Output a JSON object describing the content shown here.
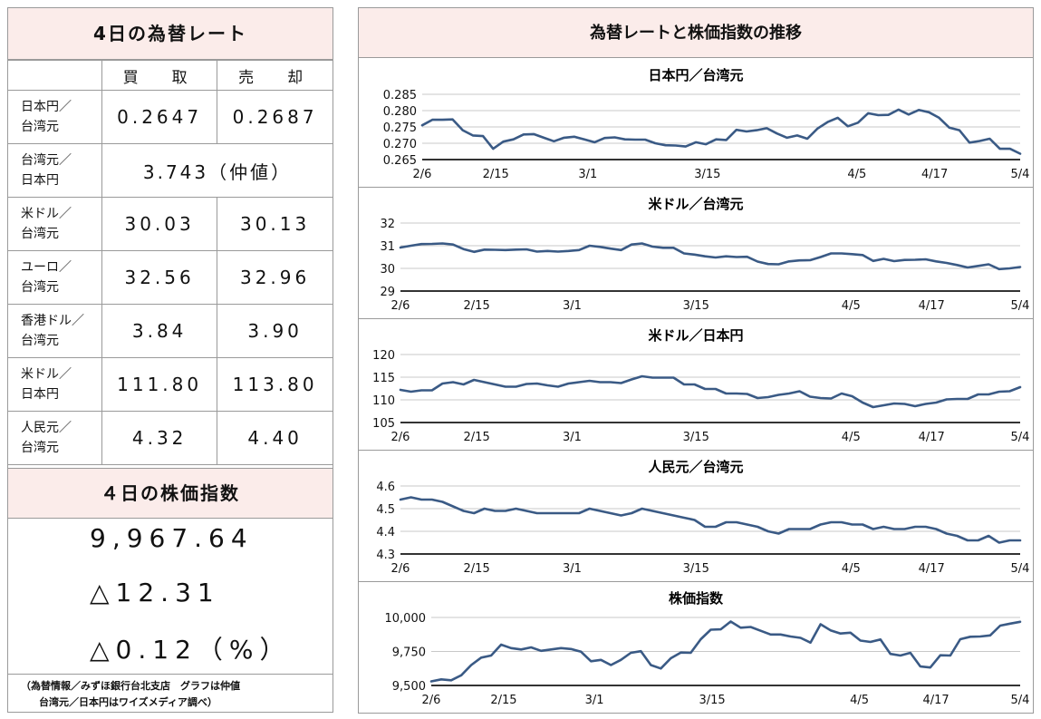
{
  "rates": {
    "title": "4日の為替レート",
    "headers": [
      "",
      "買　取",
      "売　却"
    ],
    "rows": [
      {
        "pair": [
          "日本円／",
          "台湾元"
        ],
        "buy": "0.2647",
        "sell": "0.2687"
      },
      {
        "pair": [
          "台湾元／",
          "日本円"
        ],
        "mid": "3.743（仲値）"
      },
      {
        "pair": [
          "米ドル／",
          "台湾元"
        ],
        "buy": "30.03",
        "sell": "30.13"
      },
      {
        "pair": [
          "ユーロ／",
          "台湾元"
        ],
        "buy": "32.56",
        "sell": "32.96"
      },
      {
        "pair": [
          "香港ドル／",
          "台湾元"
        ],
        "buy": "3.84",
        "sell": "3.90"
      },
      {
        "pair": [
          "米ドル／",
          "日本円"
        ],
        "buy": "111.80",
        "sell": "113.80"
      },
      {
        "pair": [
          "人民元／",
          "台湾元"
        ],
        "buy": "4.32",
        "sell": "4.40"
      }
    ]
  },
  "stock": {
    "title": "４日の株価指数",
    "value": "9,967.64",
    "change": "△12.31",
    "change_pct": "△0.12（%）",
    "note_line1": "（為替情報／みずほ銀行台北支店　グラフは仲値",
    "note_line2": "台湾元／日本円はワイズメディア調べ）"
  },
  "charts_title": "為替レートと株価指数の推移",
  "line_color": "#3a5a85",
  "x_labels": [
    "2/6",
    "2/15",
    "3/1",
    "3/15",
    "4/5",
    "4/17",
    "5/4"
  ],
  "chart_data": [
    {
      "type": "line",
      "title": "日本円／台湾元",
      "ylim": [
        0.265,
        0.285
      ],
      "yticks": [
        "0.265",
        "0.270",
        "0.275",
        "0.280",
        "0.285"
      ],
      "values": [
        0.2755,
        0.2772,
        0.2772,
        0.2773,
        0.274,
        0.2724,
        0.2722,
        0.2683,
        0.2705,
        0.2712,
        0.2727,
        0.2728,
        0.2717,
        0.2706,
        0.2717,
        0.272,
        0.2712,
        0.2703,
        0.2716,
        0.2718,
        0.2712,
        0.2711,
        0.2711,
        0.27,
        0.2694,
        0.2693,
        0.269,
        0.2703,
        0.2697,
        0.2712,
        0.271,
        0.2741,
        0.2736,
        0.274,
        0.2746,
        0.273,
        0.2717,
        0.2724,
        0.2714,
        0.2745,
        0.2765,
        0.2778,
        0.2752,
        0.2763,
        0.2792,
        0.2786,
        0.2787,
        0.2803,
        0.2788,
        0.2802,
        0.2795,
        0.2778,
        0.2748,
        0.274,
        0.2702,
        0.2707,
        0.2714,
        0.2683,
        0.2683,
        0.2668
      ]
    },
    {
      "type": "line",
      "title": "米ドル／台湾元",
      "ylim": [
        29,
        32
      ],
      "yticks": [
        "29",
        "30",
        "31",
        "32"
      ],
      "values": [
        30.92,
        31.0,
        31.07,
        31.08,
        31.1,
        31.05,
        30.85,
        30.73,
        30.83,
        30.82,
        30.81,
        30.83,
        30.84,
        30.74,
        30.77,
        30.74,
        30.77,
        30.81,
        31.0,
        30.95,
        30.87,
        30.81,
        31.05,
        31.1,
        30.96,
        30.91,
        30.91,
        30.66,
        30.61,
        30.53,
        30.48,
        30.53,
        30.5,
        30.51,
        30.3,
        30.19,
        30.18,
        30.31,
        30.35,
        30.36,
        30.5,
        30.66,
        30.66,
        30.63,
        30.59,
        30.33,
        30.42,
        30.32,
        30.37,
        30.38,
        30.4,
        30.31,
        30.24,
        30.15,
        30.04,
        30.11,
        30.18,
        29.97,
        30.0,
        30.06
      ]
    },
    {
      "type": "line",
      "title": "米ドル／日本円",
      "ylim": [
        105,
        120
      ],
      "yticks": [
        "105",
        "110",
        "115",
        "120"
      ],
      "values": [
        112.2,
        111.8,
        112.1,
        112.1,
        113.6,
        113.9,
        113.4,
        114.4,
        113.9,
        113.4,
        112.9,
        112.9,
        113.5,
        113.6,
        113.2,
        112.9,
        113.6,
        113.9,
        114.2,
        113.9,
        113.9,
        113.7,
        114.5,
        115.2,
        114.9,
        114.9,
        114.9,
        113.4,
        113.4,
        112.4,
        112.4,
        111.4,
        111.4,
        111.3,
        110.4,
        110.6,
        111.1,
        111.4,
        111.9,
        110.7,
        110.4,
        110.3,
        111.4,
        110.8,
        109.4,
        108.4,
        108.8,
        109.2,
        109.1,
        108.6,
        109.1,
        109.4,
        110.1,
        110.2,
        110.2,
        111.2,
        111.2,
        111.8,
        111.9,
        112.8
      ]
    },
    {
      "type": "line",
      "title": "人民元／台湾元",
      "ylim": [
        4.3,
        4.6
      ],
      "yticks": [
        "4.3",
        "4.4",
        "4.5",
        "4.6"
      ],
      "values": [
        4.54,
        4.55,
        4.54,
        4.54,
        4.53,
        4.51,
        4.49,
        4.48,
        4.5,
        4.49,
        4.49,
        4.5,
        4.49,
        4.48,
        4.48,
        4.48,
        4.48,
        4.48,
        4.5,
        4.49,
        4.48,
        4.47,
        4.48,
        4.5,
        4.49,
        4.48,
        4.47,
        4.46,
        4.45,
        4.42,
        4.42,
        4.44,
        4.44,
        4.43,
        4.42,
        4.4,
        4.39,
        4.41,
        4.41,
        4.41,
        4.43,
        4.44,
        4.44,
        4.43,
        4.43,
        4.41,
        4.42,
        4.41,
        4.41,
        4.42,
        4.42,
        4.41,
        4.39,
        4.38,
        4.36,
        4.36,
        4.38,
        4.35,
        4.36,
        4.36
      ]
    },
    {
      "type": "line",
      "title": "株価指数",
      "ylim": [
        9500,
        10000
      ],
      "yticks": [
        "9,500",
        "9,750",
        "10,000"
      ],
      "values": [
        9530,
        9545,
        9538,
        9575,
        9650,
        9705,
        9720,
        9800,
        9775,
        9765,
        9780,
        9755,
        9765,
        9775,
        9768,
        9748,
        9678,
        9688,
        9650,
        9688,
        9740,
        9752,
        9650,
        9625,
        9700,
        9742,
        9740,
        9840,
        9910,
        9913,
        9970,
        9925,
        9930,
        9902,
        9875,
        9875,
        9860,
        9850,
        9815,
        9950,
        9905,
        9882,
        9888,
        9830,
        9820,
        9838,
        9732,
        9720,
        9740,
        9640,
        9632,
        9722,
        9720,
        9840,
        9858,
        9860,
        9868,
        9940,
        9955,
        9968
      ]
    }
  ]
}
